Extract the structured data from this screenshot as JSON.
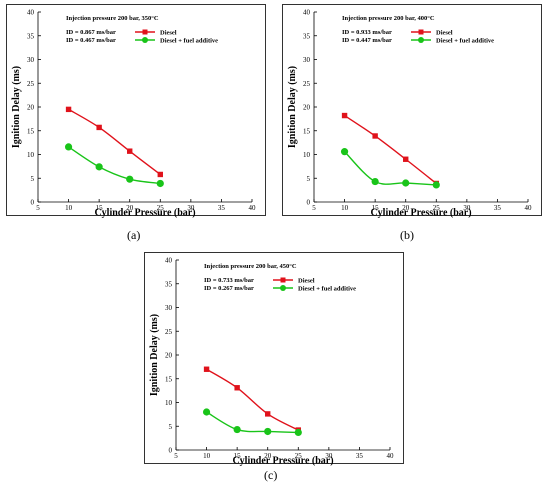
{
  "chart_data": [
    {
      "type": "line",
      "panel_label": "(a)",
      "title": "Injection pressure 200 bar, 350°C",
      "xlabel": "Cylinder Pressure (bar)",
      "ylabel": "Ignition Delay (ms)",
      "xlim": [
        5,
        40
      ],
      "ylim": [
        0,
        40
      ],
      "xticks": [
        5,
        10,
        15,
        20,
        25,
        30,
        35,
        40
      ],
      "yticks": [
        0,
        5,
        10,
        15,
        20,
        25,
        30,
        35,
        40
      ],
      "grid": false,
      "annotations": [
        "ID = 0.867 ms/bar",
        "ID = 0.467 ms/bar"
      ],
      "series": [
        {
          "name": "Diesel",
          "color": "#e0121b",
          "marker": "square",
          "x": [
            10,
            15,
            20,
            25
          ],
          "y": [
            19.5,
            15.7,
            10.7,
            5.8
          ]
        },
        {
          "name": "Diesel + fuel additive",
          "color": "#19c419",
          "marker": "circle",
          "x": [
            10,
            15,
            20,
            25
          ],
          "y": [
            11.6,
            7.4,
            4.8,
            3.9
          ]
        }
      ]
    },
    {
      "type": "line",
      "panel_label": "(b)",
      "title": "Injection pressure 200 bar, 400°C",
      "xlabel": "Cylinder Pressure (bar)",
      "ylabel": "Ignition Delay (ms)",
      "xlim": [
        5,
        40
      ],
      "ylim": [
        0,
        40
      ],
      "xticks": [
        5,
        10,
        15,
        20,
        25,
        30,
        35,
        40
      ],
      "yticks": [
        0,
        5,
        10,
        15,
        20,
        25,
        30,
        35,
        40
      ],
      "grid": false,
      "annotations": [
        "ID = 0.933 ms/bar",
        "ID = 0.447 ms/bar"
      ],
      "series": [
        {
          "name": "Diesel",
          "color": "#e0121b",
          "marker": "square",
          "x": [
            10,
            15,
            20,
            25
          ],
          "y": [
            18.2,
            13.9,
            9.0,
            3.9
          ]
        },
        {
          "name": "Diesel + fuel additive",
          "color": "#19c419",
          "marker": "circle",
          "x": [
            10,
            15,
            20,
            25
          ],
          "y": [
            10.6,
            4.3,
            4.0,
            3.6
          ]
        }
      ]
    },
    {
      "type": "line",
      "panel_label": "(c)",
      "title": "Injection pressure 200 bar, 450°C",
      "xlabel": "Cylinder Pressure (bar)",
      "ylabel": "Ignition Delay (ms)",
      "xlim": [
        5,
        40
      ],
      "ylim": [
        0,
        40
      ],
      "xticks": [
        5,
        10,
        15,
        20,
        25,
        30,
        35,
        40
      ],
      "yticks": [
        0,
        5,
        10,
        15,
        20,
        25,
        30,
        35,
        40
      ],
      "grid": false,
      "annotations": [
        "ID = 0.733 ms/bar",
        "ID = 0.267 ms/bar"
      ],
      "series": [
        {
          "name": "Diesel",
          "color": "#e0121b",
          "marker": "square",
          "x": [
            10,
            15,
            20,
            25
          ],
          "y": [
            17.0,
            13.1,
            7.6,
            4.2
          ]
        },
        {
          "name": "Diesel + fuel additive",
          "color": "#19c419",
          "marker": "circle",
          "x": [
            10,
            15,
            20,
            25
          ],
          "y": [
            8.0,
            4.3,
            3.9,
            3.7
          ]
        }
      ]
    }
  ]
}
